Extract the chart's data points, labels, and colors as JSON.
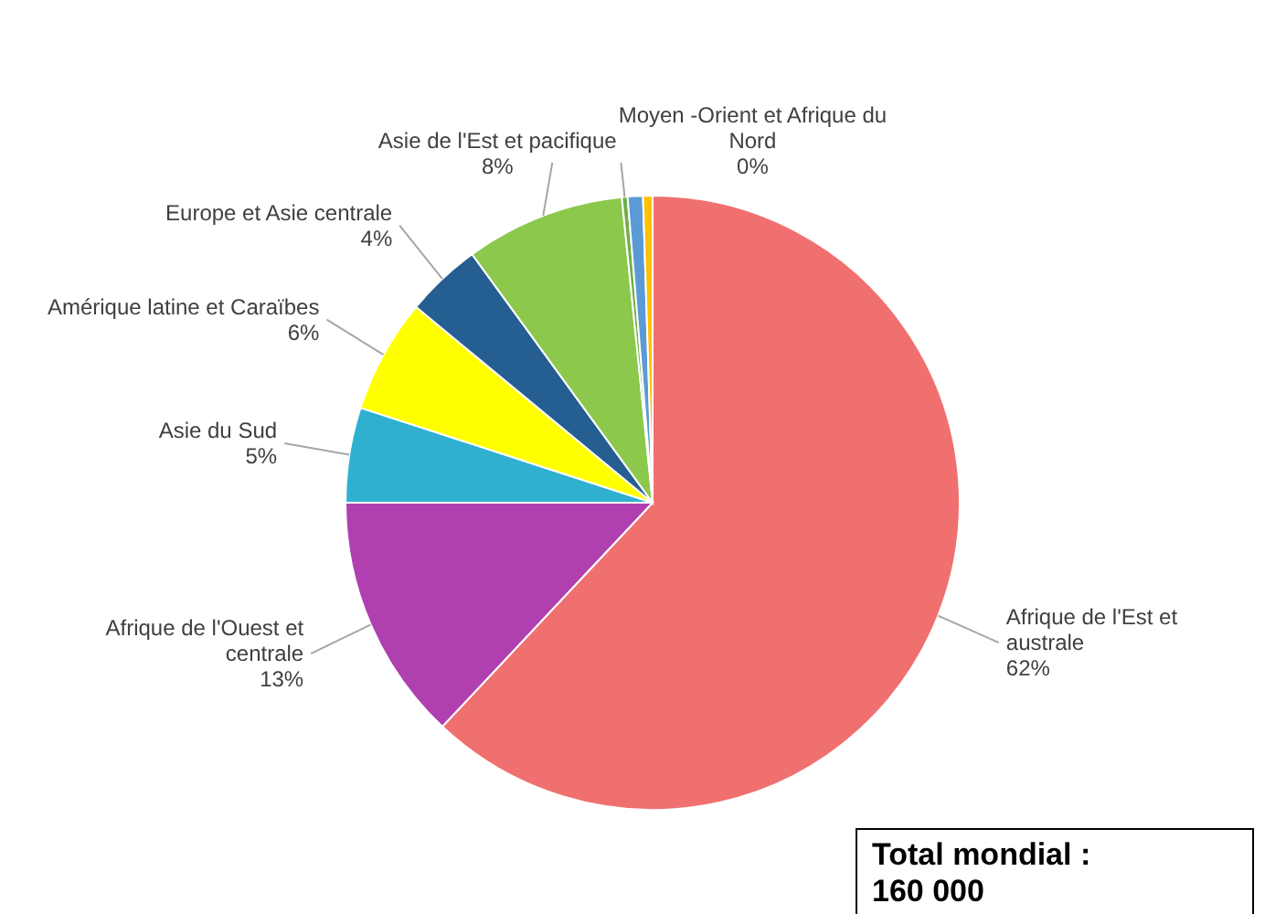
{
  "chart_data": {
    "type": "pie",
    "categories": [
      "Afrique de l'Est et australe",
      "Afrique de l'Ouest et centrale",
      "Asie du Sud",
      "Amérique latine et Caraïbes",
      "Europe et Asie centrale",
      "Asie de l'Est et pacifique",
      "Moyen -Orient et Afrique du Nord",
      null,
      null
    ],
    "values": [
      62,
      13,
      5,
      6,
      4,
      8.4,
      0.3,
      0.8,
      0.5
    ],
    "value_labels": [
      "62%",
      "13%",
      "5%",
      "6%",
      "4%",
      "8%",
      "0%",
      null,
      null
    ],
    "colors": [
      "#f07070",
      "#b040b0",
      "#30b0d0",
      "#ffff00",
      "#255e91",
      "#8cc84b",
      "#70ad47",
      "#5b9bd5",
      "#ffc000"
    ],
    "annotations": [
      "Total mondial :\n160  000"
    ]
  }
}
